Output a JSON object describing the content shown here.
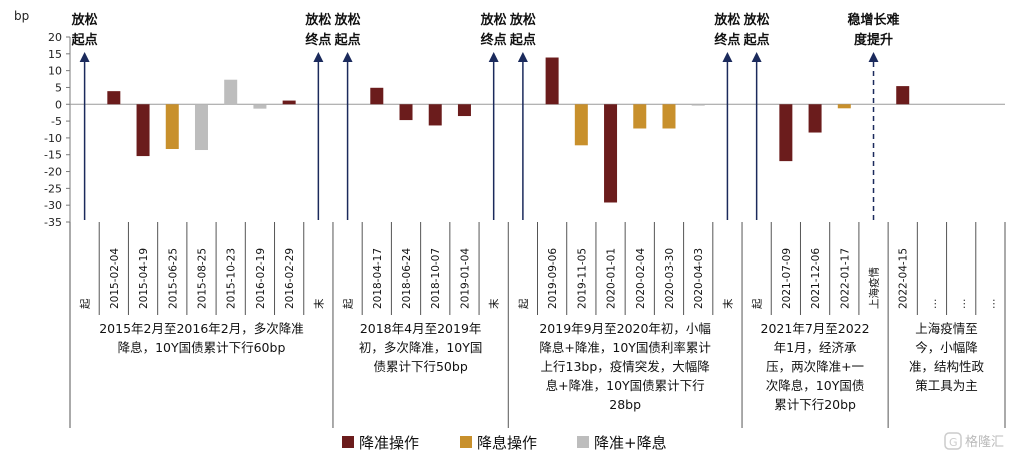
{
  "chart_data": {
    "type": "bar",
    "ylabel": "bp",
    "ylim": [
      -35,
      20
    ],
    "yticks": [
      20,
      15,
      10,
      5,
      0,
      -5,
      -10,
      -15,
      -20,
      -25,
      -30,
      -35
    ],
    "categories": [
      "起",
      "2015-02-04",
      "2015-04-19",
      "2015-06-25",
      "2015-08-25",
      "2015-10-23",
      "2016-02-19",
      "2016-02-29",
      "末",
      "起",
      "2018-04-17",
      "2018-06-24",
      "2018-10-07",
      "2019-01-04",
      "末",
      "起",
      "2019-09-06",
      "2019-11-05",
      "2020-01-01",
      "2020-02-04",
      "2020-03-30",
      "2020-04-03",
      "末",
      "起",
      "2021-07-09",
      "2021-12-06",
      "2022-01-17",
      "上海疫情",
      "2022-04-15",
      "…",
      "…",
      "…"
    ],
    "series": [
      {
        "name": "降准操作",
        "color": "#6b1c1c",
        "values": [
          null,
          3.9,
          -15.4,
          null,
          null,
          null,
          null,
          1.1,
          null,
          null,
          4.9,
          -4.7,
          -6.3,
          -3.5,
          null,
          null,
          13.9,
          null,
          -29.2,
          null,
          null,
          null,
          null,
          null,
          -16.9,
          -8.4,
          null,
          null,
          5.4,
          null,
          null,
          null
        ]
      },
      {
        "name": "降息操作",
        "color": "#c8902c",
        "values": [
          null,
          null,
          null,
          -13.3,
          null,
          null,
          null,
          null,
          null,
          null,
          null,
          null,
          null,
          null,
          null,
          null,
          null,
          -12.2,
          null,
          -7.2,
          -7.2,
          null,
          null,
          null,
          null,
          null,
          -1.2,
          null,
          null,
          null,
          null,
          null
        ]
      },
      {
        "name": "降准+降息",
        "color": "#bdbdbd",
        "values": [
          null,
          null,
          null,
          null,
          -13.6,
          7.3,
          -1.3,
          null,
          null,
          null,
          null,
          null,
          null,
          null,
          null,
          null,
          null,
          null,
          null,
          null,
          null,
          -0.4,
          null,
          null,
          null,
          null,
          null,
          null,
          null,
          null,
          null,
          null
        ]
      }
    ],
    "annotations": [
      {
        "text": [
          "放松",
          "起点"
        ],
        "category_index": 0,
        "arrow": "solid"
      },
      {
        "text": [
          "放松",
          "终点"
        ],
        "category_index": 8,
        "arrow": "solid"
      },
      {
        "text": [
          "放松",
          "起点"
        ],
        "category_index": 9,
        "arrow": "solid"
      },
      {
        "text": [
          "放松",
          "终点"
        ],
        "category_index": 14,
        "arrow": "solid"
      },
      {
        "text": [
          "放松",
          "起点"
        ],
        "category_index": 15,
        "arrow": "solid"
      },
      {
        "text": [
          "放松",
          "终点"
        ],
        "category_index": 22,
        "arrow": "solid"
      },
      {
        "text": [
          "放松",
          "起点"
        ],
        "category_index": 23,
        "arrow": "solid"
      },
      {
        "text": [
          "稳增长难",
          "度提升"
        ],
        "category_index": 27,
        "arrow": "dashed"
      }
    ],
    "period_descriptions": [
      {
        "from": 0,
        "to": 8,
        "lines": [
          "2015年2月至2016年2月，多次降准",
          "降息，10Y国债累计下行60bp"
        ]
      },
      {
        "from": 9,
        "to": 14,
        "lines": [
          "2018年4月至2019年",
          "初，多次降准，10Y国",
          "债累计下行50bp"
        ]
      },
      {
        "from": 15,
        "to": 22,
        "lines": [
          "2019年9月至2020年初，小幅",
          "降息+降准，10Y国债利率累计",
          "上行13bp，疫情突发，大幅降",
          "息+降准，10Y国债累计下行",
          "28bp"
        ]
      },
      {
        "from": 23,
        "to": 27,
        "lines": [
          "2021年7月至2022",
          "年1月，经济承",
          "压，两次降准+一",
          "次降息，10Y国债",
          "累计下行20bp"
        ]
      },
      {
        "from": 28,
        "to": 31,
        "lines": [
          "上海疫情至",
          "今，小幅降",
          "准，结构性政",
          "策工具为主"
        ]
      }
    ],
    "legend": [
      "降准操作",
      "降息操作",
      "降准+降息"
    ],
    "legend_position": "bottom",
    "grid": false
  },
  "watermark": "格隆汇"
}
